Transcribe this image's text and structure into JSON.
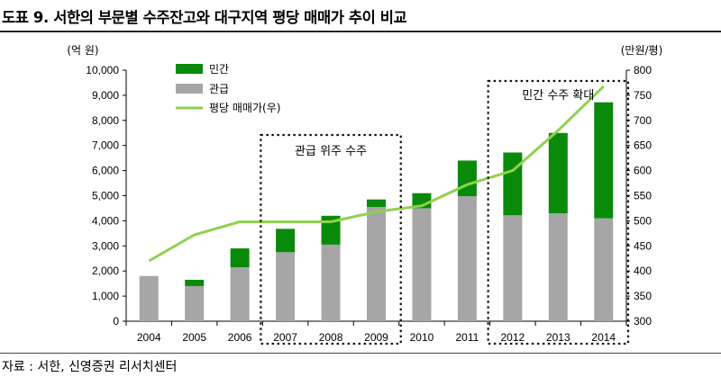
{
  "header": {
    "title": "도표 9. 서한의 부문별 수주잔고와 대구지역 평당 매매가 추이 비교"
  },
  "footer": {
    "source": "자료 : 서한, 신영증권 리서치센터"
  },
  "colors": {
    "private": "#0a8a0a",
    "public": "#a6a6a6",
    "price": "#8fd14f"
  },
  "chart_data": {
    "type": "bar",
    "stacked": true,
    "categories": [
      "2004",
      "2005",
      "2006",
      "2007",
      "2008",
      "2009",
      "2010",
      "2011",
      "2012",
      "2013",
      "2014"
    ],
    "series": [
      {
        "name": "관급",
        "axis": "left",
        "values": [
          1800,
          1400,
          2150,
          2750,
          3050,
          4550,
          4500,
          4980,
          4220,
          4300,
          4100
        ]
      },
      {
        "name": "민간",
        "axis": "left",
        "values": [
          0,
          250,
          750,
          930,
          1150,
          300,
          600,
          1420,
          2500,
          3200,
          4620
        ]
      },
      {
        "name": "평당 매매가(우)",
        "axis": "right",
        "type": "line",
        "values": [
          420,
          472,
          498,
          498,
          498,
          518,
          530,
          572,
          600,
          680,
          768
        ]
      }
    ],
    "y_left": {
      "label": "(억 원)",
      "min": 0,
      "max": 10000,
      "step": 1000,
      "ticks": [
        "0",
        "1,000",
        "2,000",
        "3,000",
        "4,000",
        "5,000",
        "6,000",
        "7,000",
        "8,000",
        "9,000",
        "10,000"
      ]
    },
    "y_right": {
      "label": "(만원/평)",
      "min": 300,
      "max": 800,
      "step": 50,
      "ticks": [
        "300",
        "350",
        "400",
        "450",
        "500",
        "550",
        "600",
        "650",
        "700",
        "750",
        "800"
      ]
    },
    "legend": {
      "placement": "top-left",
      "items": [
        "민간",
        "관급",
        "평당 매매가(우)"
      ]
    },
    "annotations": [
      {
        "text": "관급 위주 수주",
        "from": "2007",
        "to": "2009"
      },
      {
        "text": "민간 수주 확대",
        "from": "2012",
        "to": "2014"
      }
    ],
    "grid": false
  }
}
